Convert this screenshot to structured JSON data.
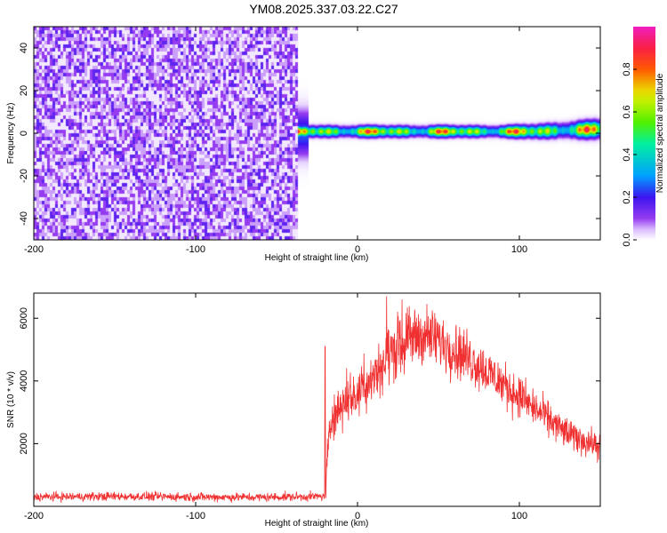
{
  "title": "YM08.2025.337.03.22.C27",
  "chart_data": [
    {
      "type": "heatmap",
      "xlabel": "Height of straight line (km)",
      "ylabel": "Frequency (Hz)",
      "xlim": [
        -200,
        150
      ],
      "ylim": [
        -50,
        50
      ],
      "xticks": [
        -200,
        -100,
        0,
        100
      ],
      "yticks": [
        40,
        20,
        0,
        -20,
        -40
      ],
      "colorbar": {
        "label": "Normalized spectral amplitude",
        "range": [
          0,
          1
        ],
        "ticks": [
          0.0,
          0.2,
          0.4,
          0.6,
          0.8
        ],
        "tick_labels": [
          "0.0",
          "0.2",
          "0.4",
          "0.6",
          "0.8"
        ],
        "colormap": "rainbow (white-violet-blue-cyan-green-yellow-red-magenta)"
      },
      "regions": [
        {
          "x_range": [
            -200,
            -37
          ],
          "frequency_range": [
            -50,
            50
          ],
          "description": "broadband noise",
          "amplitude_range": [
            0.0,
            0.12
          ]
        },
        {
          "x_range": [
            -37,
            150
          ],
          "frequency_band": [
            -2,
            4
          ],
          "description": "narrow band near 0 Hz",
          "peak_amplitude": 0.95
        }
      ]
    },
    {
      "type": "line",
      "xlabel": "Height of straight line (km)",
      "ylabel": "SNR (10 * v/v)",
      "xlim": [
        -200,
        150
      ],
      "ylim": [
        0,
        6800
      ],
      "xticks": [
        -200,
        -100,
        0,
        100
      ],
      "yticks": [
        2000,
        4000,
        6000
      ],
      "color": "#f03030",
      "series": [
        {
          "name": "SNR",
          "x": [
            -200,
            -150,
            -100,
            -60,
            -20,
            -18,
            -16,
            -10,
            0,
            10,
            20,
            30,
            40,
            50,
            60,
            70,
            80,
            90,
            100,
            110,
            120,
            130,
            140,
            150
          ],
          "values": [
            300,
            320,
            300,
            290,
            320,
            1900,
            2800,
            3300,
            3600,
            4200,
            4900,
            5300,
            5500,
            5300,
            5000,
            4700,
            4300,
            3900,
            3500,
            3100,
            2700,
            2300,
            2100,
            1900
          ]
        }
      ],
      "noise_amplitude": 300,
      "spikes": [
        {
          "x": -20,
          "value": 5100
        },
        {
          "x": 18,
          "value": 6700
        },
        {
          "x": 102,
          "value": 4000
        }
      ]
    }
  ]
}
